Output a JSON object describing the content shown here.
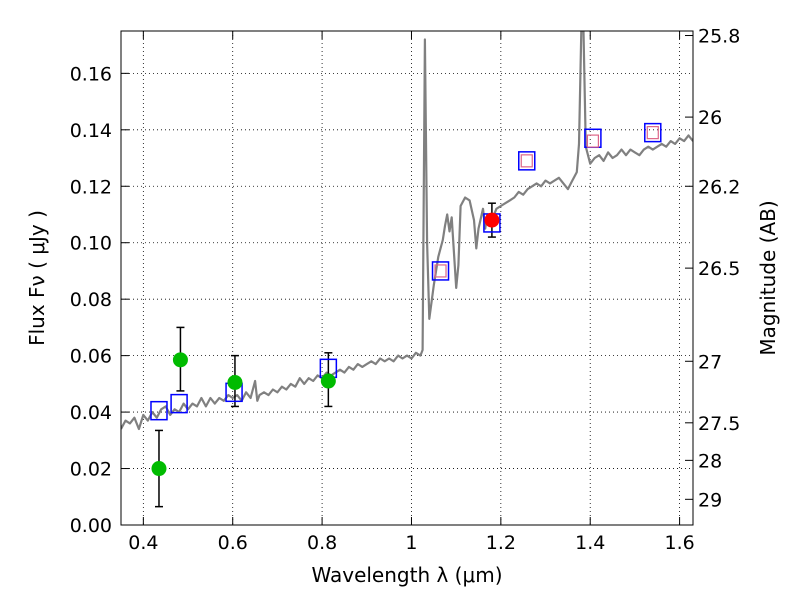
{
  "chart_data": {
    "type": "scatter",
    "title": "",
    "xlabel": "Wavelength  λ (μm)",
    "ylabel": "Flux  Fν  ( μJy )",
    "ylabel_right": "Magnitude (AB)",
    "xlim": [
      0.35,
      1.63
    ],
    "ylim": [
      0.0,
      0.175
    ],
    "grid": true,
    "x_ticks": [
      0.4,
      0.6,
      0.8,
      1.0,
      1.2,
      1.4,
      1.6
    ],
    "x_tick_labels": [
      "0.4",
      "0.6",
      "0.8",
      "1",
      "1.2",
      "1.4",
      "1.6"
    ],
    "y_ticks": [
      0.0,
      0.02,
      0.04,
      0.06,
      0.08,
      0.1,
      0.12,
      0.14,
      0.16
    ],
    "y_tick_labels": [
      "0.00",
      "0.02",
      "0.04",
      "0.06",
      "0.08",
      "0.10",
      "0.12",
      "0.14",
      "0.16"
    ],
    "right_ticks": [
      {
        "label": "25.8",
        "flux": 0.1734
      },
      {
        "label": "26",
        "flux": 0.1445
      },
      {
        "label": "26.2",
        "flux": 0.12
      },
      {
        "label": "26.5",
        "flux": 0.091
      },
      {
        "label": "27",
        "flux": 0.058
      },
      {
        "label": "27.5",
        "flux": 0.0362
      },
      {
        "label": "28",
        "flux": 0.0229
      },
      {
        "label": "29",
        "flux": 0.0091
      }
    ],
    "colors": {
      "model": "#808080",
      "green": "#00bb00",
      "red": "#ff0000",
      "blue": "#0000ff",
      "pink": "#dd6688",
      "errorbar": "#000000"
    },
    "series": [
      {
        "name": "model spectrum",
        "kind": "line",
        "points": [
          [
            0.35,
            0.034
          ],
          [
            0.36,
            0.037
          ],
          [
            0.37,
            0.036
          ],
          [
            0.38,
            0.038
          ],
          [
            0.39,
            0.034
          ],
          [
            0.4,
            0.039
          ],
          [
            0.41,
            0.037
          ],
          [
            0.42,
            0.04
          ],
          [
            0.43,
            0.038
          ],
          [
            0.44,
            0.041
          ],
          [
            0.45,
            0.042
          ],
          [
            0.46,
            0.039
          ],
          [
            0.47,
            0.041
          ],
          [
            0.48,
            0.04
          ],
          [
            0.49,
            0.043
          ],
          [
            0.5,
            0.041
          ],
          [
            0.51,
            0.043
          ],
          [
            0.52,
            0.042
          ],
          [
            0.53,
            0.045
          ],
          [
            0.54,
            0.042
          ],
          [
            0.55,
            0.045
          ],
          [
            0.56,
            0.043
          ],
          [
            0.57,
            0.045
          ],
          [
            0.58,
            0.044
          ],
          [
            0.59,
            0.046
          ],
          [
            0.6,
            0.045
          ],
          [
            0.61,
            0.046
          ],
          [
            0.62,
            0.044
          ],
          [
            0.63,
            0.047
          ],
          [
            0.64,
            0.045
          ],
          [
            0.65,
            0.051
          ],
          [
            0.655,
            0.044
          ],
          [
            0.66,
            0.046
          ],
          [
            0.67,
            0.047
          ],
          [
            0.68,
            0.046
          ],
          [
            0.69,
            0.048
          ],
          [
            0.7,
            0.047
          ],
          [
            0.71,
            0.049
          ],
          [
            0.72,
            0.048
          ],
          [
            0.73,
            0.05
          ],
          [
            0.74,
            0.049
          ],
          [
            0.75,
            0.052
          ],
          [
            0.76,
            0.05
          ],
          [
            0.77,
            0.052
          ],
          [
            0.78,
            0.051
          ],
          [
            0.79,
            0.053
          ],
          [
            0.8,
            0.052
          ],
          [
            0.81,
            0.054
          ],
          [
            0.82,
            0.053
          ],
          [
            0.83,
            0.054
          ],
          [
            0.84,
            0.055
          ],
          [
            0.85,
            0.054
          ],
          [
            0.86,
            0.056
          ],
          [
            0.87,
            0.055
          ],
          [
            0.88,
            0.057
          ],
          [
            0.89,
            0.056
          ],
          [
            0.9,
            0.057
          ],
          [
            0.91,
            0.058
          ],
          [
            0.92,
            0.057
          ],
          [
            0.93,
            0.059
          ],
          [
            0.94,
            0.058
          ],
          [
            0.95,
            0.059
          ],
          [
            0.96,
            0.058
          ],
          [
            0.97,
            0.06
          ],
          [
            0.98,
            0.059
          ],
          [
            0.99,
            0.06
          ],
          [
            1.0,
            0.059
          ],
          [
            1.01,
            0.061
          ],
          [
            1.02,
            0.06
          ],
          [
            1.025,
            0.062
          ],
          [
            1.03,
            0.172
          ],
          [
            1.035,
            0.1
          ],
          [
            1.04,
            0.073
          ],
          [
            1.05,
            0.085
          ],
          [
            1.06,
            0.095
          ],
          [
            1.07,
            0.101
          ],
          [
            1.075,
            0.106
          ],
          [
            1.08,
            0.11
          ],
          [
            1.085,
            0.104
          ],
          [
            1.09,
            0.109
          ],
          [
            1.1,
            0.084
          ],
          [
            1.105,
            0.092
          ],
          [
            1.11,
            0.113
          ],
          [
            1.12,
            0.116
          ],
          [
            1.13,
            0.115
          ],
          [
            1.14,
            0.108
          ],
          [
            1.145,
            0.098
          ],
          [
            1.15,
            0.105
          ],
          [
            1.16,
            0.112
          ],
          [
            1.165,
            0.105
          ],
          [
            1.17,
            0.11
          ],
          [
            1.18,
            0.108
          ],
          [
            1.19,
            0.112
          ],
          [
            1.2,
            0.113
          ],
          [
            1.21,
            0.114
          ],
          [
            1.22,
            0.115
          ],
          [
            1.23,
            0.116
          ],
          [
            1.24,
            0.118
          ],
          [
            1.25,
            0.117
          ],
          [
            1.26,
            0.119
          ],
          [
            1.27,
            0.12
          ],
          [
            1.28,
            0.121
          ],
          [
            1.29,
            0.12
          ],
          [
            1.3,
            0.122
          ],
          [
            1.31,
            0.121
          ],
          [
            1.32,
            0.122
          ],
          [
            1.33,
            0.123
          ],
          [
            1.34,
            0.121
          ],
          [
            1.35,
            0.119
          ],
          [
            1.36,
            0.122
          ],
          [
            1.37,
            0.125
          ],
          [
            1.375,
            0.135
          ],
          [
            1.38,
            0.175
          ],
          [
            1.385,
            0.175
          ],
          [
            1.39,
            0.134
          ],
          [
            1.4,
            0.128
          ],
          [
            1.41,
            0.13
          ],
          [
            1.42,
            0.131
          ],
          [
            1.43,
            0.129
          ],
          [
            1.44,
            0.132
          ],
          [
            1.45,
            0.13
          ],
          [
            1.46,
            0.131
          ],
          [
            1.47,
            0.133
          ],
          [
            1.48,
            0.131
          ],
          [
            1.49,
            0.133
          ],
          [
            1.5,
            0.132
          ],
          [
            1.51,
            0.131
          ],
          [
            1.52,
            0.133
          ],
          [
            1.53,
            0.134
          ],
          [
            1.54,
            0.133
          ],
          [
            1.55,
            0.134
          ],
          [
            1.56,
            0.135
          ],
          [
            1.57,
            0.134
          ],
          [
            1.58,
            0.136
          ],
          [
            1.59,
            0.135
          ],
          [
            1.6,
            0.137
          ],
          [
            1.61,
            0.136
          ],
          [
            1.62,
            0.138
          ],
          [
            1.63,
            0.136
          ]
        ]
      },
      {
        "name": "observed (green)",
        "kind": "points",
        "points": [
          {
            "x": 0.435,
            "y": 0.02,
            "yerr_low": 0.0135,
            "yerr_high": 0.0135
          },
          {
            "x": 0.483,
            "y": 0.0585,
            "yerr_low": 0.011,
            "yerr_high": 0.0115
          },
          {
            "x": 0.605,
            "y": 0.0505,
            "yerr_low": 0.0085,
            "yerr_high": 0.0095
          },
          {
            "x": 0.814,
            "y": 0.051,
            "yerr_low": 0.009,
            "yerr_high": 0.01
          }
        ]
      },
      {
        "name": "observed (red)",
        "kind": "points",
        "points": [
          {
            "x": 1.18,
            "y": 0.108,
            "yerr_low": 0.006,
            "yerr_high": 0.006
          }
        ]
      },
      {
        "name": "model photometry (blue squares)",
        "kind": "squares",
        "points": [
          {
            "x": 0.435,
            "y": 0.0405
          },
          {
            "x": 0.48,
            "y": 0.043
          },
          {
            "x": 0.603,
            "y": 0.047
          },
          {
            "x": 0.814,
            "y": 0.0555
          },
          {
            "x": 1.065,
            "y": 0.09
          },
          {
            "x": 1.18,
            "y": 0.107
          },
          {
            "x": 1.258,
            "y": 0.129
          },
          {
            "x": 1.406,
            "y": 0.137
          },
          {
            "x": 1.54,
            "y": 0.139
          }
        ]
      },
      {
        "name": "model photometry (pink squares)",
        "kind": "small-squares",
        "points": [
          {
            "x": 1.065,
            "y": 0.09
          },
          {
            "x": 1.258,
            "y": 0.129
          },
          {
            "x": 1.406,
            "y": 0.136
          },
          {
            "x": 1.54,
            "y": 0.139
          }
        ]
      }
    ]
  }
}
